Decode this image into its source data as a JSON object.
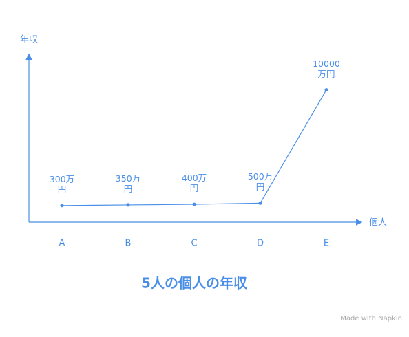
{
  "chart_data": {
    "type": "line",
    "title": "5人の個人の年収",
    "x_label": "個人",
    "y_label": "年収",
    "categories": [
      "A",
      "B",
      "C",
      "D",
      "E"
    ],
    "values": [
      300,
      350,
      400,
      500,
      10000
    ],
    "value_labels": [
      "300万円",
      "350万円",
      "400万円",
      "500万円",
      "10000万円"
    ],
    "color": "#4a8fe7",
    "ylim": [
      0,
      12000
    ]
  },
  "footer": "Made with Napkin"
}
